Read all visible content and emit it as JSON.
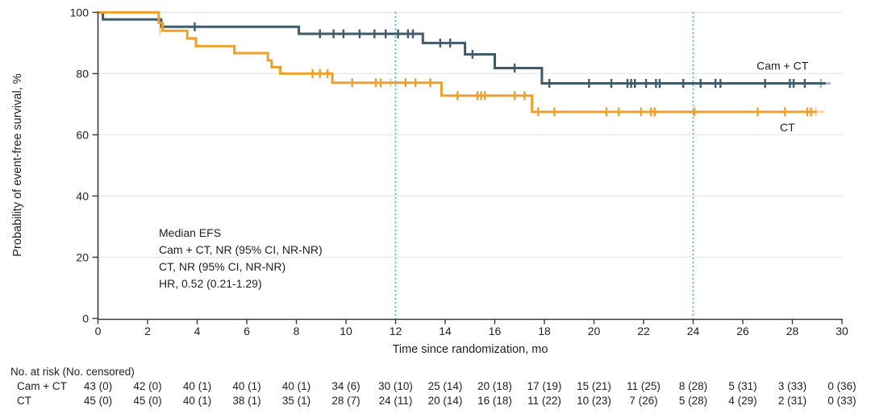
{
  "chart_data": {
    "type": "line",
    "subtype": "kaplan_meier_step",
    "title": "",
    "xlabel": "Time since randomization, mo",
    "ylabel": "Probability of event-free survival, %",
    "xlim": [
      0,
      30
    ],
    "ylim": [
      0,
      100
    ],
    "xticks": [
      0,
      2,
      4,
      6,
      8,
      10,
      12,
      14,
      16,
      18,
      20,
      22,
      24,
      26,
      28,
      30
    ],
    "yticks": [
      0,
      20,
      40,
      60,
      80,
      100
    ],
    "grid": "horizontal",
    "reference_lines_x": [
      12,
      24
    ],
    "colors": {
      "cam_ct": "#3e5a6b",
      "ct": "#f0a02a",
      "reference": "#41b6e6",
      "grid": "#e8e8e8",
      "axis": "#3a3a3a",
      "text": "#212121"
    },
    "annotations": [
      "Median EFS",
      "Cam + CT, NR (95% CI, NR-NR)",
      "CT, NR (95% CI, NR-NR)",
      "HR, 0.52 (0.21-1.29)"
    ],
    "series": [
      {
        "name": "Cam + CT",
        "color": "#3e5a6b",
        "label_pos": [
          27.6,
          81.3
        ],
        "steps": [
          [
            0,
            100
          ],
          [
            0.2,
            97.7
          ],
          [
            2.55,
            95.3
          ],
          [
            8.1,
            93.0
          ],
          [
            13.1,
            90.0
          ],
          [
            14.8,
            86.3
          ],
          [
            16.0,
            81.8
          ],
          [
            17.9,
            76.8
          ]
        ],
        "end_x": 29.35,
        "tail_x": 29.55,
        "censors": [
          [
            3.9,
            95.3,
            0
          ],
          [
            8.95,
            93,
            0
          ],
          [
            9.5,
            93,
            0
          ],
          [
            9.9,
            93,
            0
          ],
          [
            10.55,
            93,
            0
          ],
          [
            11.15,
            93,
            0
          ],
          [
            11.6,
            93,
            0
          ],
          [
            12.1,
            93,
            0
          ],
          [
            12.5,
            93,
            0
          ],
          [
            12.7,
            93,
            0
          ],
          [
            13.8,
            90,
            0
          ],
          [
            14.2,
            90,
            0
          ],
          [
            15.1,
            86.3,
            0
          ],
          [
            16.8,
            81.8,
            0
          ],
          [
            18.2,
            76.8,
            0
          ],
          [
            19.8,
            76.8,
            0
          ],
          [
            20.7,
            76.8,
            0
          ],
          [
            21.35,
            76.8,
            0
          ],
          [
            21.5,
            76.8,
            0
          ],
          [
            21.65,
            76.8,
            0
          ],
          [
            22.1,
            76.8,
            0
          ],
          [
            22.5,
            76.8,
            0
          ],
          [
            22.65,
            76.8,
            0
          ],
          [
            23.6,
            76.8,
            0
          ],
          [
            24.3,
            76.8,
            0
          ],
          [
            24.9,
            76.8,
            0
          ],
          [
            25.1,
            76.8,
            0
          ],
          [
            26.9,
            76.8,
            0
          ],
          [
            27.9,
            76.8,
            0
          ],
          [
            28.05,
            76.8,
            0
          ],
          [
            28.5,
            76.8,
            0
          ],
          [
            29.15,
            76.8,
            1
          ]
        ]
      },
      {
        "name": "CT",
        "color": "#f0a02a",
        "label_pos": [
          27.8,
          61.2
        ],
        "steps": [
          [
            0,
            100
          ],
          [
            2.45,
            96.6
          ],
          [
            2.6,
            94.0
          ],
          [
            3.6,
            91.5
          ],
          [
            3.95,
            89.0
          ],
          [
            5.5,
            86.7
          ],
          [
            6.85,
            84.3
          ],
          [
            7.0,
            82.1
          ],
          [
            7.35,
            80.0
          ],
          [
            9.45,
            77.0
          ],
          [
            13.85,
            72.8
          ],
          [
            17.5,
            67.5
          ]
        ],
        "end_x": 28.95,
        "tail_x": 29.3,
        "censors": [
          [
            2.5,
            94.0,
            1
          ],
          [
            8.65,
            80,
            0
          ],
          [
            8.95,
            80,
            0
          ],
          [
            9.25,
            80,
            0
          ],
          [
            10.25,
            77,
            0
          ],
          [
            11.2,
            77,
            0
          ],
          [
            11.4,
            77,
            0
          ],
          [
            11.8,
            77,
            1
          ],
          [
            12.4,
            77,
            0
          ],
          [
            12.8,
            77,
            0
          ],
          [
            13.4,
            77,
            0
          ],
          [
            14.5,
            72.8,
            0
          ],
          [
            15.3,
            72.8,
            0
          ],
          [
            15.45,
            72.8,
            0
          ],
          [
            15.6,
            72.8,
            0
          ],
          [
            16.8,
            72.8,
            0
          ],
          [
            17.2,
            72.8,
            0
          ],
          [
            17.75,
            67.5,
            0
          ],
          [
            18.4,
            67.5,
            0
          ],
          [
            20.5,
            67.5,
            0
          ],
          [
            21.0,
            67.5,
            0
          ],
          [
            21.9,
            67.5,
            0
          ],
          [
            22.3,
            67.5,
            0
          ],
          [
            22.45,
            67.5,
            0
          ],
          [
            24.05,
            67.5,
            0
          ],
          [
            26.6,
            67.5,
            0
          ],
          [
            27.7,
            67.5,
            0
          ],
          [
            28.6,
            67.5,
            0
          ],
          [
            28.75,
            67.5,
            0
          ],
          [
            28.95,
            67.5,
            1
          ]
        ]
      }
    ],
    "risk_table": {
      "header": "No. at risk (No. censored)",
      "time_points": [
        0,
        2,
        4,
        6,
        8,
        10,
        12,
        14,
        16,
        18,
        20,
        22,
        24,
        26,
        28,
        30
      ],
      "rows": [
        {
          "label": "Cam + CT",
          "values": [
            "43 (0)",
            "42 (0)",
            "40 (1)",
            "40 (1)",
            "40 (1)",
            "34 (6)",
            "30 (10)",
            "25 (14)",
            "20 (18)",
            "17 (19)",
            "15 (21)",
            "11 (25)",
            "8 (28)",
            "5 (31)",
            "3 (33)",
            "0 (36)"
          ]
        },
        {
          "label": "CT",
          "values": [
            "45 (0)",
            "45 (0)",
            "40 (1)",
            "38 (1)",
            "35 (1)",
            "28 (7)",
            "24 (11)",
            "20 (14)",
            "16 (18)",
            "11 (22)",
            "10 (23)",
            "7 (26)",
            "5 (28)",
            "4 (29)",
            "2 (31)",
            "0 (33)"
          ]
        }
      ]
    }
  }
}
